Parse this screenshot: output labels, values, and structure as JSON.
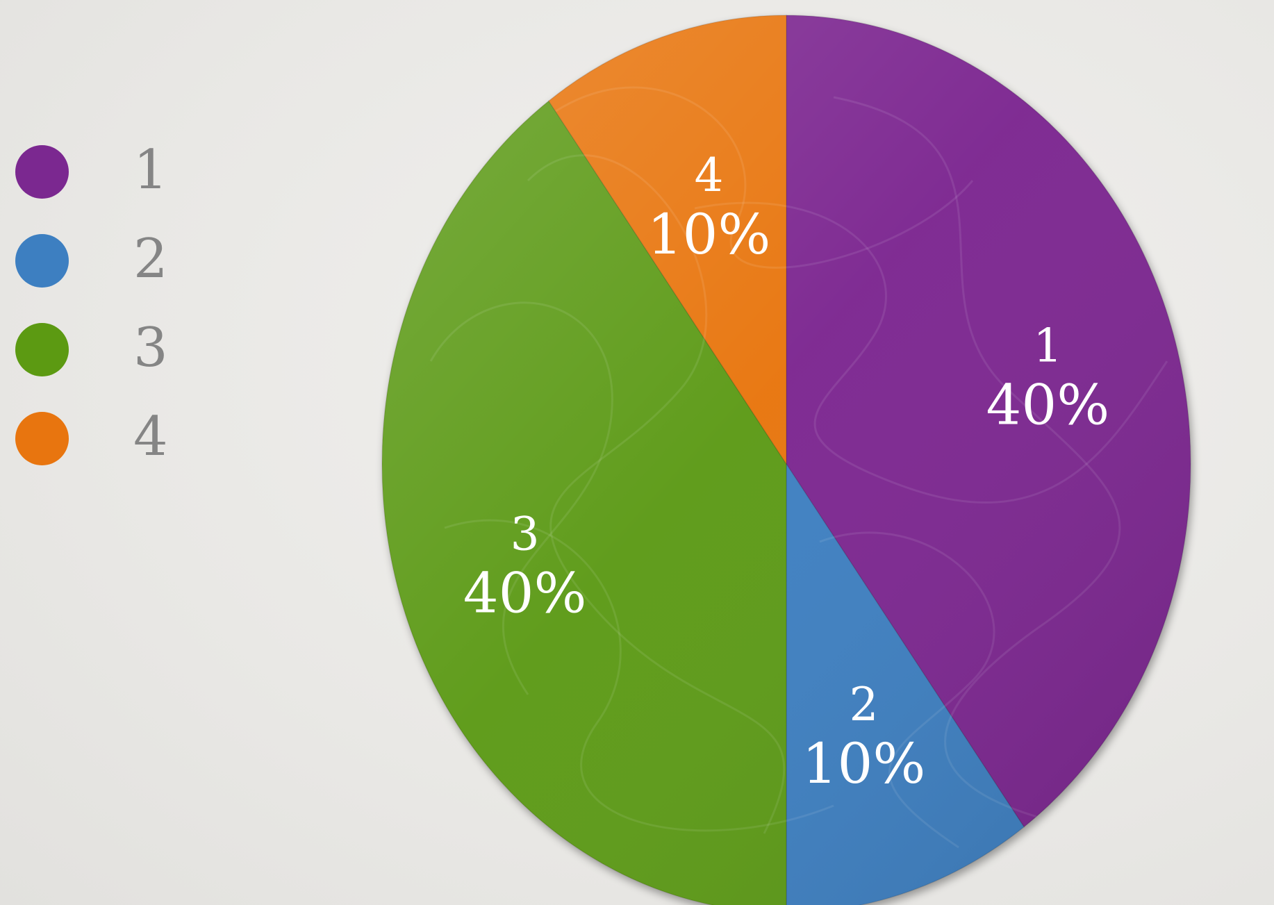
{
  "chart_data": {
    "type": "pie",
    "title": "",
    "categories": [
      "1",
      "2",
      "3",
      "4"
    ],
    "values": [
      40,
      10,
      40,
      10
    ],
    "value_labels": [
      "40%",
      "10%",
      "40%",
      "10%"
    ],
    "colors": [
      "#7b2890",
      "#3d7fc1",
      "#5c9a12",
      "#e8750f"
    ],
    "legend": {
      "placement": "left",
      "entries": [
        "1",
        "2",
        "3",
        "4"
      ]
    },
    "start_angle_deg": 0,
    "direction": "clockwise"
  }
}
